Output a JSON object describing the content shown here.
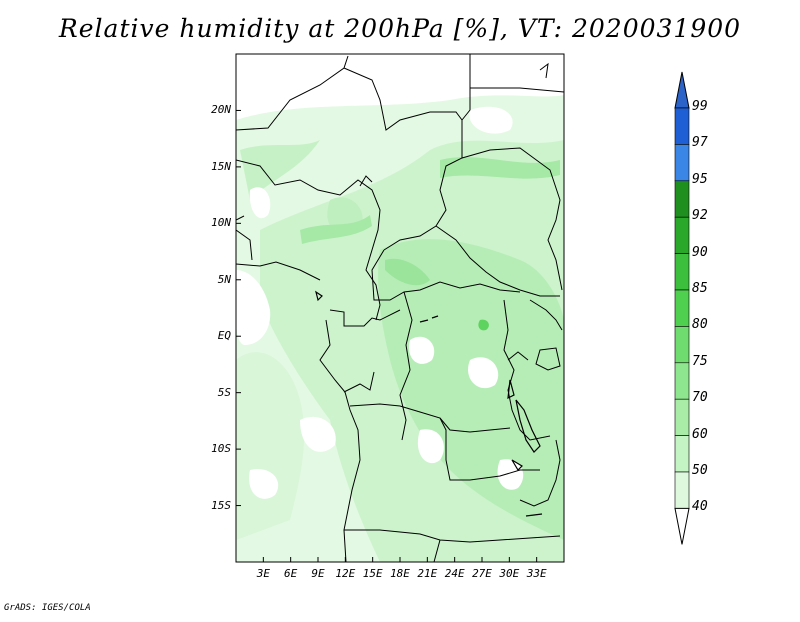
{
  "title": "Relative humidity at 200hPa [%], VT: 2020031900",
  "credit": "GrADS: IGES/COLA",
  "map": {
    "lon_range": [
      0,
      36
    ],
    "lat_range": [
      -20,
      25
    ],
    "y_ticks": [
      {
        "label": "20N",
        "lat": 20
      },
      {
        "label": "15N",
        "lat": 15
      },
      {
        "label": "10N",
        "lat": 10
      },
      {
        "label": "5N",
        "lat": 5
      },
      {
        "label": "EQ",
        "lat": 0
      },
      {
        "label": "5S",
        "lat": -5
      },
      {
        "label": "10S",
        "lat": -10
      },
      {
        "label": "15S",
        "lat": -15
      }
    ],
    "x_ticks": [
      {
        "label": "3E",
        "lon": 3
      },
      {
        "label": "6E",
        "lon": 6
      },
      {
        "label": "9E",
        "lon": 9
      },
      {
        "label": "12E",
        "lon": 12
      },
      {
        "label": "15E",
        "lon": 15
      },
      {
        "label": "18E",
        "lon": 18
      },
      {
        "label": "21E",
        "lon": 21
      },
      {
        "label": "24E",
        "lon": 24
      },
      {
        "label": "27E",
        "lon": 27
      },
      {
        "label": "30E",
        "lon": 30
      },
      {
        "label": "33E",
        "lon": 33
      }
    ]
  },
  "colorbar": {
    "levels": [
      "99",
      "97",
      "95",
      "92",
      "90",
      "85",
      "80",
      "75",
      "70",
      "60",
      "50",
      "40"
    ],
    "colors": [
      "#1f5fd6",
      "#3a86e6",
      "#1f8f1f",
      "#2aa82a",
      "#3cbf3c",
      "#4fd14f",
      "#6edc6e",
      "#8ee68e",
      "#a8eca8",
      "#c4f3c4",
      "#ddf8dd",
      "#f2fcf2"
    ],
    "top_arrow_color": "#2b63c8"
  }
}
